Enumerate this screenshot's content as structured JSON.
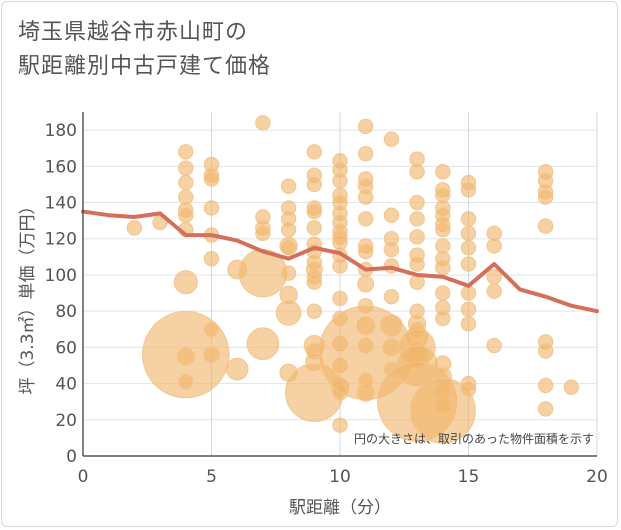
{
  "title_lines": [
    "埼玉県越谷市赤山町の",
    "駅距離別中古戸建て価格"
  ],
  "chart_data": {
    "type": "scatter",
    "xlabel": "駅距離（分）",
    "ylabel": "坪（3.3㎡）単価（万円）",
    "xlim": [
      0,
      20
    ],
    "ylim": [
      0,
      190
    ],
    "x_ticks": [
      0,
      5,
      10,
      15,
      20
    ],
    "y_ticks": [
      0,
      20,
      40,
      60,
      80,
      100,
      120,
      140,
      160,
      180
    ],
    "grid": true,
    "note": "円の大きさは、取引のあった物件面積を示す",
    "bubble_color": "#f0b46a",
    "line_color": "#d4705a",
    "points": [
      {
        "x": 2,
        "y": 126,
        "s": 1
      },
      {
        "x": 3,
        "y": 129,
        "s": 1
      },
      {
        "x": 4,
        "y": 168,
        "s": 1
      },
      {
        "x": 4,
        "y": 159,
        "s": 1
      },
      {
        "x": 4,
        "y": 151,
        "s": 1
      },
      {
        "x": 4,
        "y": 143,
        "s": 1
      },
      {
        "x": 4,
        "y": 136,
        "s": 1
      },
      {
        "x": 4,
        "y": 133,
        "s": 1
      },
      {
        "x": 4,
        "y": 125,
        "s": 1
      },
      {
        "x": 4,
        "y": 96,
        "s": 1.6
      },
      {
        "x": 4,
        "y": 56,
        "s": 6
      },
      {
        "x": 4,
        "y": 55,
        "s": 1.2
      },
      {
        "x": 4,
        "y": 41,
        "s": 1
      },
      {
        "x": 5,
        "y": 161,
        "s": 1
      },
      {
        "x": 5,
        "y": 155,
        "s": 1
      },
      {
        "x": 5,
        "y": 153,
        "s": 1
      },
      {
        "x": 5,
        "y": 137,
        "s": 1
      },
      {
        "x": 5,
        "y": 122,
        "s": 1
      },
      {
        "x": 5,
        "y": 109,
        "s": 1
      },
      {
        "x": 5,
        "y": 70,
        "s": 1
      },
      {
        "x": 5,
        "y": 56,
        "s": 1.1
      },
      {
        "x": 6,
        "y": 103,
        "s": 1.3
      },
      {
        "x": 6,
        "y": 48,
        "s": 1.5
      },
      {
        "x": 7,
        "y": 184,
        "s": 1
      },
      {
        "x": 7,
        "y": 132,
        "s": 1
      },
      {
        "x": 7,
        "y": 126,
        "s": 1
      },
      {
        "x": 7,
        "y": 123,
        "s": 1
      },
      {
        "x": 7,
        "y": 101,
        "s": 3.3
      },
      {
        "x": 7,
        "y": 62,
        "s": 2.2
      },
      {
        "x": 8,
        "y": 149,
        "s": 1
      },
      {
        "x": 8,
        "y": 137,
        "s": 1
      },
      {
        "x": 8,
        "y": 131,
        "s": 1
      },
      {
        "x": 8,
        "y": 125,
        "s": 1
      },
      {
        "x": 8,
        "y": 116,
        "s": 1.2
      },
      {
        "x": 8,
        "y": 115,
        "s": 1
      },
      {
        "x": 8,
        "y": 101,
        "s": 1
      },
      {
        "x": 8,
        "y": 89,
        "s": 1.2
      },
      {
        "x": 8,
        "y": 79,
        "s": 1.7
      },
      {
        "x": 8,
        "y": 46,
        "s": 1.2
      },
      {
        "x": 9,
        "y": 168,
        "s": 1
      },
      {
        "x": 9,
        "y": 155,
        "s": 1
      },
      {
        "x": 9,
        "y": 150,
        "s": 1
      },
      {
        "x": 9,
        "y": 137,
        "s": 1
      },
      {
        "x": 9,
        "y": 135,
        "s": 1
      },
      {
        "x": 9,
        "y": 126,
        "s": 1
      },
      {
        "x": 9,
        "y": 117,
        "s": 1
      },
      {
        "x": 9,
        "y": 113,
        "s": 1
      },
      {
        "x": 9,
        "y": 107,
        "s": 1
      },
      {
        "x": 9,
        "y": 103,
        "s": 1.1
      },
      {
        "x": 9,
        "y": 99,
        "s": 1
      },
      {
        "x": 9,
        "y": 96,
        "s": 1
      },
      {
        "x": 9,
        "y": 80,
        "s": 1
      },
      {
        "x": 9,
        "y": 61,
        "s": 1.4
      },
      {
        "x": 9,
        "y": 58,
        "s": 1.1
      },
      {
        "x": 9,
        "y": 52,
        "s": 1.2
      },
      {
        "x": 9,
        "y": 35,
        "s": 4
      },
      {
        "x": 10,
        "y": 163,
        "s": 1
      },
      {
        "x": 10,
        "y": 158,
        "s": 1
      },
      {
        "x": 10,
        "y": 152,
        "s": 1
      },
      {
        "x": 10,
        "y": 144,
        "s": 1
      },
      {
        "x": 10,
        "y": 140,
        "s": 1
      },
      {
        "x": 10,
        "y": 134,
        "s": 1
      },
      {
        "x": 10,
        "y": 129,
        "s": 1
      },
      {
        "x": 10,
        "y": 124,
        "s": 1
      },
      {
        "x": 10,
        "y": 121,
        "s": 1
      },
      {
        "x": 10,
        "y": 118,
        "s": 1
      },
      {
        "x": 10,
        "y": 111,
        "s": 1
      },
      {
        "x": 10,
        "y": 105,
        "s": 1
      },
      {
        "x": 10,
        "y": 87,
        "s": 1
      },
      {
        "x": 10,
        "y": 76,
        "s": 1
      },
      {
        "x": 10,
        "y": 62,
        "s": 1
      },
      {
        "x": 10,
        "y": 50,
        "s": 1
      },
      {
        "x": 10,
        "y": 38,
        "s": 1.2
      },
      {
        "x": 10,
        "y": 35,
        "s": 1
      },
      {
        "x": 10,
        "y": 17,
        "s": 1
      },
      {
        "x": 11,
        "y": 182,
        "s": 1
      },
      {
        "x": 11,
        "y": 167,
        "s": 1
      },
      {
        "x": 11,
        "y": 153,
        "s": 1
      },
      {
        "x": 11,
        "y": 149,
        "s": 1
      },
      {
        "x": 11,
        "y": 143,
        "s": 1
      },
      {
        "x": 11,
        "y": 131,
        "s": 1
      },
      {
        "x": 11,
        "y": 116,
        "s": 1
      },
      {
        "x": 11,
        "y": 113,
        "s": 1
      },
      {
        "x": 11,
        "y": 103,
        "s": 1
      },
      {
        "x": 11,
        "y": 95,
        "s": 1.1
      },
      {
        "x": 11,
        "y": 83,
        "s": 1
      },
      {
        "x": 11,
        "y": 72,
        "s": 1.2
      },
      {
        "x": 11,
        "y": 61,
        "s": 1
      },
      {
        "x": 11,
        "y": 57,
        "s": 6.5
      },
      {
        "x": 11,
        "y": 42,
        "s": 1
      },
      {
        "x": 11,
        "y": 35,
        "s": 1.2
      },
      {
        "x": 12,
        "y": 175,
        "s": 1
      },
      {
        "x": 12,
        "y": 133,
        "s": 1
      },
      {
        "x": 12,
        "y": 120,
        "s": 1
      },
      {
        "x": 12,
        "y": 114,
        "s": 1
      },
      {
        "x": 12,
        "y": 105,
        "s": 1
      },
      {
        "x": 12,
        "y": 88,
        "s": 1
      },
      {
        "x": 12,
        "y": 72,
        "s": 1.5
      },
      {
        "x": 12,
        "y": 60,
        "s": 1.2
      },
      {
        "x": 12,
        "y": 48,
        "s": 1
      },
      {
        "x": 13,
        "y": 164,
        "s": 1
      },
      {
        "x": 13,
        "y": 157,
        "s": 1
      },
      {
        "x": 13,
        "y": 140,
        "s": 1
      },
      {
        "x": 13,
        "y": 131,
        "s": 1
      },
      {
        "x": 13,
        "y": 121,
        "s": 1
      },
      {
        "x": 13,
        "y": 111,
        "s": 1
      },
      {
        "x": 13,
        "y": 106,
        "s": 1
      },
      {
        "x": 13,
        "y": 96,
        "s": 1
      },
      {
        "x": 13,
        "y": 80,
        "s": 1
      },
      {
        "x": 13,
        "y": 73,
        "s": 1.2
      },
      {
        "x": 13,
        "y": 70,
        "s": 1
      },
      {
        "x": 13,
        "y": 66,
        "s": 1.5
      },
      {
        "x": 13,
        "y": 60,
        "s": 2.5
      },
      {
        "x": 13,
        "y": 58,
        "s": 1.3
      },
      {
        "x": 13,
        "y": 55,
        "s": 1.5
      },
      {
        "x": 13,
        "y": 50,
        "s": 2.8
      },
      {
        "x": 13,
        "y": 30,
        "s": 5.5
      },
      {
        "x": 14,
        "y": 157,
        "s": 1
      },
      {
        "x": 14,
        "y": 147,
        "s": 1
      },
      {
        "x": 14,
        "y": 144,
        "s": 1
      },
      {
        "x": 14,
        "y": 137,
        "s": 1
      },
      {
        "x": 14,
        "y": 133,
        "s": 1
      },
      {
        "x": 14,
        "y": 128,
        "s": 1
      },
      {
        "x": 14,
        "y": 125,
        "s": 1
      },
      {
        "x": 14,
        "y": 116,
        "s": 1
      },
      {
        "x": 14,
        "y": 109,
        "s": 1
      },
      {
        "x": 14,
        "y": 104,
        "s": 1
      },
      {
        "x": 14,
        "y": 90,
        "s": 1
      },
      {
        "x": 14,
        "y": 82,
        "s": 1
      },
      {
        "x": 14,
        "y": 76,
        "s": 1
      },
      {
        "x": 14,
        "y": 51,
        "s": 1.1
      },
      {
        "x": 14,
        "y": 44,
        "s": 1.2
      },
      {
        "x": 14,
        "y": 36,
        "s": 1
      },
      {
        "x": 14,
        "y": 28,
        "s": 1
      },
      {
        "x": 14,
        "y": 25,
        "s": 4.5
      },
      {
        "x": 15,
        "y": 151,
        "s": 1
      },
      {
        "x": 15,
        "y": 147,
        "s": 1
      },
      {
        "x": 15,
        "y": 131,
        "s": 1
      },
      {
        "x": 15,
        "y": 123,
        "s": 1
      },
      {
        "x": 15,
        "y": 115,
        "s": 1
      },
      {
        "x": 15,
        "y": 106,
        "s": 1
      },
      {
        "x": 15,
        "y": 90,
        "s": 1
      },
      {
        "x": 15,
        "y": 81,
        "s": 1
      },
      {
        "x": 15,
        "y": 73,
        "s": 1
      },
      {
        "x": 15,
        "y": 40,
        "s": 1
      },
      {
        "x": 15,
        "y": 37,
        "s": 1
      },
      {
        "x": 16,
        "y": 123,
        "s": 1
      },
      {
        "x": 16,
        "y": 116,
        "s": 1
      },
      {
        "x": 16,
        "y": 99,
        "s": 1
      },
      {
        "x": 16,
        "y": 91,
        "s": 1
      },
      {
        "x": 16,
        "y": 61,
        "s": 1
      },
      {
        "x": 18,
        "y": 157,
        "s": 1
      },
      {
        "x": 18,
        "y": 152,
        "s": 1
      },
      {
        "x": 18,
        "y": 146,
        "s": 1
      },
      {
        "x": 18,
        "y": 143,
        "s": 1
      },
      {
        "x": 18,
        "y": 127,
        "s": 1
      },
      {
        "x": 18,
        "y": 63,
        "s": 1
      },
      {
        "x": 18,
        "y": 58,
        "s": 1
      },
      {
        "x": 18,
        "y": 39,
        "s": 1
      },
      {
        "x": 18,
        "y": 26,
        "s": 1
      },
      {
        "x": 19,
        "y": 38,
        "s": 1
      }
    ],
    "series": [
      {
        "type": "line",
        "x": [
          0,
          1,
          2,
          3,
          4,
          5,
          6,
          7,
          8,
          9,
          10,
          11,
          12,
          13,
          14,
          15,
          16,
          17,
          18,
          19,
          20
        ],
        "values": [
          135,
          133,
          132,
          134,
          122,
          122,
          119,
          113,
          109,
          115,
          112,
          103,
          104,
          100,
          99,
          94,
          106,
          92,
          88,
          83,
          80
        ]
      }
    ]
  }
}
